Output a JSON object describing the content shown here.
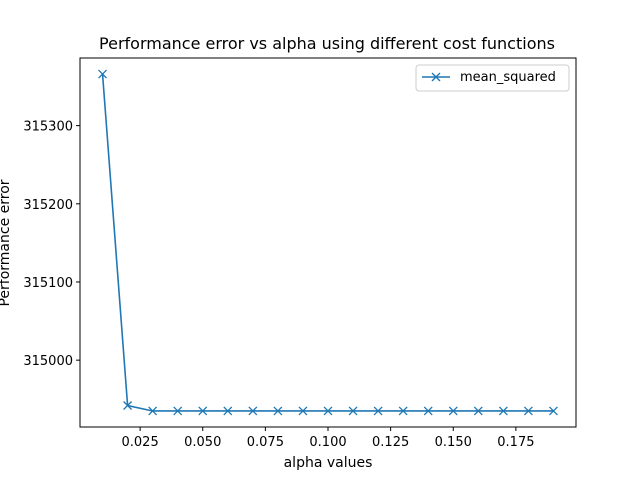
{
  "chart_data": {
    "type": "line",
    "title": "Performance error vs alpha using different cost functions",
    "xlabel": "alpha values",
    "ylabel": "Performance error",
    "x": [
      0.01,
      0.02,
      0.03,
      0.04,
      0.05,
      0.06,
      0.07,
      0.08,
      0.09,
      0.1,
      0.11,
      0.12,
      0.13,
      0.14,
      0.15,
      0.16,
      0.17,
      0.18,
      0.19
    ],
    "series": [
      {
        "name": "mean_squared",
        "color": "#1f77b4",
        "marker": "x",
        "values": [
          315366,
          314942,
          314935,
          314935,
          314935,
          314935,
          314935,
          314935,
          314935,
          314935,
          314935,
          314935,
          314935,
          314935,
          314935,
          314935,
          314935,
          314935,
          314935
        ]
      }
    ],
    "xlim": [
      0.001,
      0.199
    ],
    "ylim": [
      314914.5,
      315386.5
    ],
    "xticks": [
      0.025,
      0.05,
      0.075,
      0.1,
      0.125,
      0.15,
      0.175
    ],
    "xtick_labels": [
      "0.025",
      "0.050",
      "0.075",
      "0.100",
      "0.125",
      "0.150",
      "0.175"
    ],
    "yticks": [
      315000,
      315100,
      315200,
      315300
    ],
    "ytick_labels": [
      "315000",
      "315100",
      "315200",
      "315300"
    ],
    "grid": false,
    "legend_position": "top-right"
  }
}
